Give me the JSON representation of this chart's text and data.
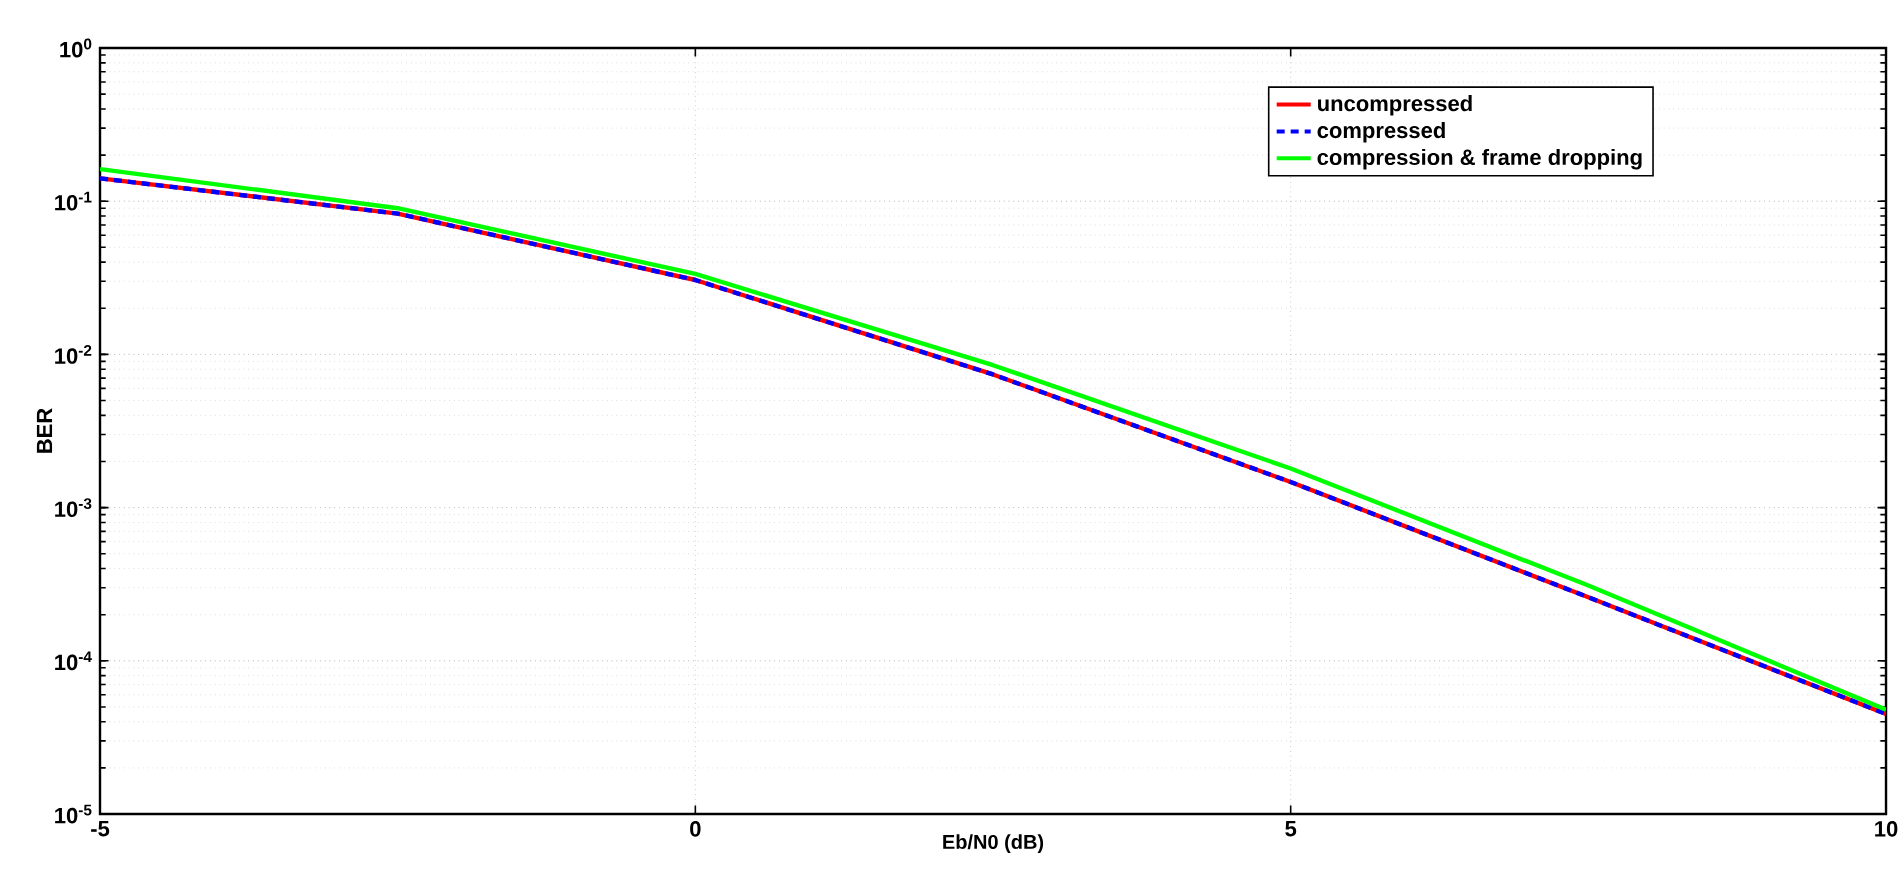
{
  "chart_data": {
    "type": "line",
    "xlabel": "Eb/N0 (dB)",
    "ylabel": "BER",
    "log": "y",
    "x": [
      -5,
      -2.5,
      0,
      2.5,
      5,
      7.5,
      10
    ],
    "series": [
      {
        "name": "uncompressed",
        "color": "#ff0000",
        "line_style": "solid",
        "values": [
          0.141,
          0.083,
          0.0306,
          0.0074,
          0.00147,
          0.00026,
          4.5e-05
        ]
      },
      {
        "name": "compressed",
        "color": "#0000ff",
        "line_style": "dashed",
        "values": [
          0.141,
          0.083,
          0.0306,
          0.0074,
          0.00147,
          0.00026,
          4.5e-05
        ]
      },
      {
        "name": "compression & frame dropping",
        "color": "#00ff00",
        "line_style": "solid",
        "values": [
          0.162,
          0.09,
          0.0335,
          0.0085,
          0.0018,
          0.00031,
          4.8e-05
        ]
      }
    ],
    "xlim": [
      -5,
      10
    ],
    "xticks": [
      -5,
      0,
      5,
      10
    ],
    "ylim": [
      1e-05,
      1
    ],
    "yticks": [
      {
        "value": 1e-05,
        "label": "10$^{-5}$"
      },
      {
        "value": 0.0001,
        "label": "10$^{-4}$"
      },
      {
        "value": 0.001,
        "label": "10$^{-3}$"
      },
      {
        "value": 0.01,
        "label": "10$^{-2}$"
      },
      {
        "value": 0.1,
        "label": "10$^{-1}$"
      },
      {
        "value": 1,
        "label": "10$^{0}$"
      }
    ],
    "grid": true,
    "legend": "top right",
    "marker": "none"
  }
}
